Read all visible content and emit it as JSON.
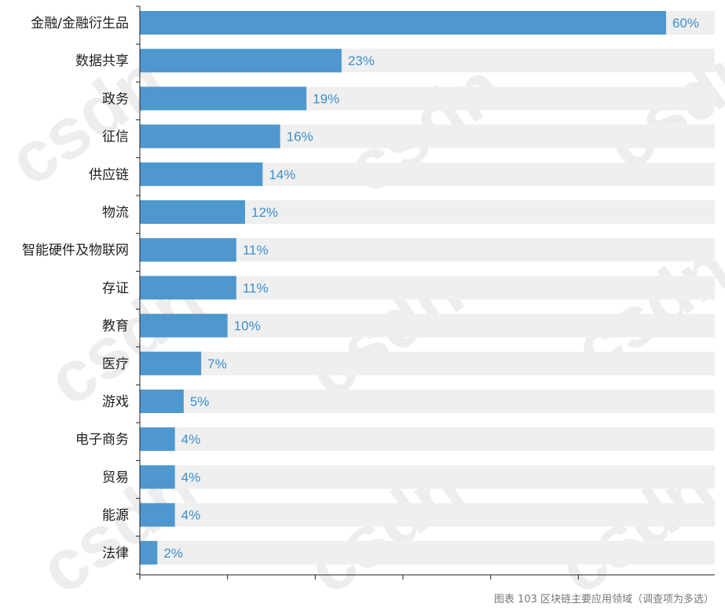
{
  "chart_data": {
    "type": "bar",
    "orientation": "horizontal",
    "categories": [
      "金融/金融衍生品",
      "数据共享",
      "政务",
      "征信",
      "供应链",
      "物流",
      "智能硬件及物联网",
      "存证",
      "教育",
      "医疗",
      "游戏",
      "电子商务",
      "贸易",
      "能源",
      "法律"
    ],
    "values": [
      60,
      23,
      19,
      16,
      14,
      12,
      11,
      11,
      10,
      7,
      5,
      4,
      4,
      4,
      2
    ],
    "data_labels": [
      "60%",
      "23%",
      "19%",
      "16%",
      "14%",
      "12%",
      "11%",
      "11%",
      "10%",
      "7%",
      "5%",
      "4%",
      "4%",
      "4%",
      "2%"
    ],
    "title": "",
    "xlabel": "",
    "ylabel": "",
    "xlim": [
      0,
      56
    ],
    "grid": false,
    "legend": "none",
    "bar_color": "#4e97cf",
    "track_color": "#efefef",
    "value_label_color": "#3a8fd0"
  },
  "caption": "图表 103  区块链主要应用领域（调查项为多选）",
  "watermark": "csdn"
}
